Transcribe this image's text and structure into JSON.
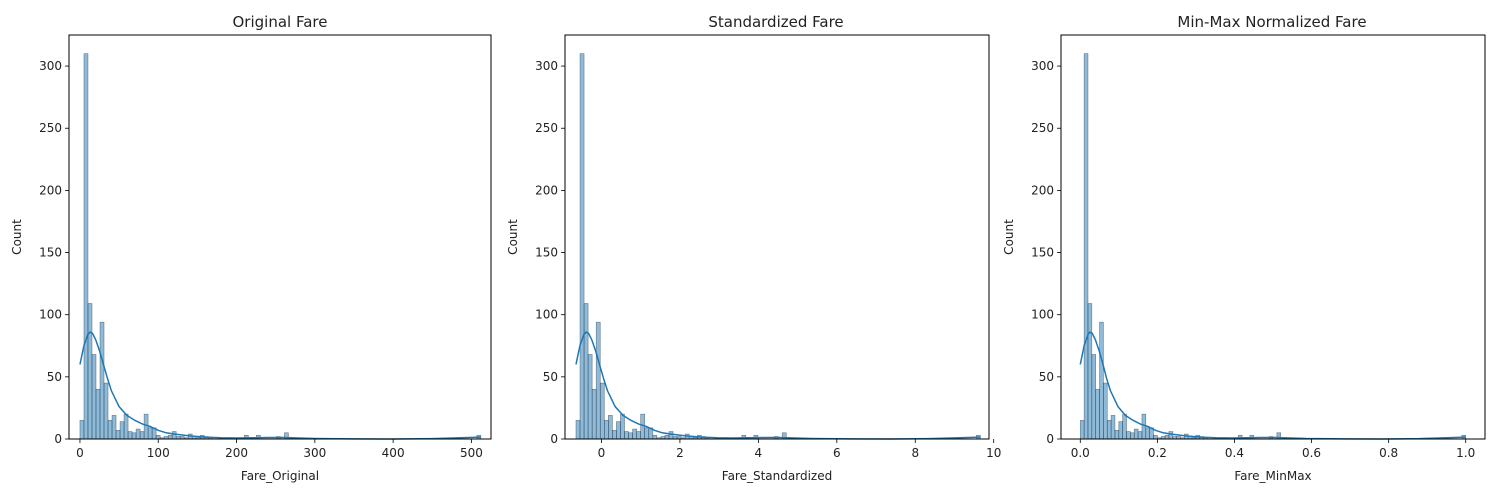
{
  "chart_data": [
    {
      "type": "bar",
      "title": "Original Fare",
      "xlabel": "Fare_Original",
      "ylabel": "Count",
      "xlim": [
        -14,
        525
      ],
      "ylim": [
        0,
        325
      ],
      "xticks": [
        0,
        100,
        200,
        300,
        400,
        500
      ],
      "xtick_labels": [
        "0",
        "100",
        "200",
        "300",
        "400",
        "500"
      ],
      "yticks": [
        0,
        50,
        100,
        150,
        200,
        250,
        300
      ],
      "ytick_labels": [
        "0",
        "50",
        "100",
        "150",
        "200",
        "250",
        "300"
      ],
      "bin_start": 0,
      "bin_width": 5.12,
      "counts": [
        15,
        310,
        109,
        68,
        40,
        94,
        45,
        15,
        19,
        7,
        14,
        20,
        6,
        5,
        8,
        6,
        20,
        9,
        9,
        3,
        1,
        2,
        3,
        6,
        2,
        2,
        1,
        4,
        1,
        1,
        3,
        2,
        1,
        0,
        0,
        0,
        0,
        0,
        0,
        0,
        0,
        3,
        0,
        0,
        3,
        0,
        0,
        0,
        0,
        2,
        0,
        5,
        0,
        0,
        0,
        0,
        0,
        0,
        0,
        0,
        0,
        0,
        0,
        0,
        0,
        0,
        0,
        0,
        0,
        0,
        0,
        0,
        0,
        0,
        0,
        0,
        0,
        0,
        0,
        0,
        0,
        0,
        0,
        0,
        0,
        0,
        0,
        0,
        0,
        0,
        0,
        0,
        0,
        0,
        0,
        0,
        0,
        0,
        0,
        3
      ],
      "kde": {
        "x": [
          0,
          5,
          10,
          13,
          16,
          20,
          25,
          30,
          35,
          40,
          50,
          60,
          70,
          80,
          90,
          100,
          110,
          120,
          140,
          160,
          180,
          200,
          220,
          240,
          260,
          280,
          300,
          350,
          400,
          450,
          512
        ],
        "y": [
          60,
          75,
          84,
          86,
          85,
          80,
          71,
          60,
          49,
          39,
          26,
          19,
          15,
          12,
          10,
          7,
          5,
          4,
          2.5,
          1.5,
          1,
          0.8,
          1,
          1.2,
          1.2,
          0.8,
          0.4,
          0.1,
          0,
          0.3,
          1.5
        ]
      },
      "bar_color": "#1f77b4",
      "line_color": "#1f77b4"
    },
    {
      "type": "bar",
      "title": "Standardized Fare",
      "xlabel": "Fare_Standardized",
      "ylabel": "Count",
      "xlim": [
        -0.93,
        9.88
      ],
      "ylim": [
        0,
        325
      ],
      "xticks": [
        0,
        2,
        4,
        6,
        8,
        10
      ],
      "xtick_labels": [
        "0",
        "2",
        "4",
        "6",
        "8",
        "10"
      ],
      "yticks": [
        0,
        50,
        100,
        150,
        200,
        250,
        300
      ],
      "ytick_labels": [
        "0",
        "50",
        "100",
        "150",
        "200",
        "250",
        "300"
      ],
      "bin_start": -0.65,
      "bin_width": 0.1031,
      "counts": [
        15,
        310,
        109,
        68,
        40,
        94,
        45,
        15,
        19,
        7,
        14,
        20,
        6,
        5,
        8,
        6,
        20,
        9,
        9,
        3,
        1,
        2,
        3,
        6,
        2,
        2,
        1,
        4,
        1,
        1,
        3,
        2,
        1,
        0,
        0,
        0,
        0,
        0,
        0,
        0,
        0,
        3,
        0,
        0,
        3,
        0,
        0,
        0,
        0,
        2,
        0,
        5,
        0,
        0,
        0,
        0,
        0,
        0,
        0,
        0,
        0,
        0,
        0,
        0,
        0,
        0,
        0,
        0,
        0,
        0,
        0,
        0,
        0,
        0,
        0,
        0,
        0,
        0,
        0,
        0,
        0,
        0,
        0,
        0,
        0,
        0,
        0,
        0,
        0,
        0,
        0,
        0,
        0,
        0,
        0,
        0,
        0,
        0,
        0,
        3
      ],
      "kde": {
        "x": [
          -0.65,
          -0.55,
          -0.45,
          -0.39,
          -0.33,
          -0.25,
          -0.15,
          -0.05,
          0.05,
          0.15,
          0.35,
          0.55,
          0.75,
          0.95,
          1.15,
          1.35,
          1.55,
          1.75,
          2.15,
          2.55,
          2.95,
          3.35,
          3.75,
          4.15,
          4.55,
          4.95,
          5.35,
          6.35,
          7.35,
          8.35,
          9.66
        ],
        "y": [
          60,
          75,
          84,
          86,
          85,
          80,
          71,
          60,
          49,
          39,
          26,
          19,
          15,
          12,
          10,
          7,
          5,
          4,
          2.5,
          1.5,
          1,
          0.8,
          1,
          1.2,
          1.2,
          0.8,
          0.4,
          0.1,
          0,
          0.3,
          1.5
        ]
      },
      "bar_color": "#1f77b4",
      "line_color": "#1f77b4"
    },
    {
      "type": "bar",
      "title": "Min-Max Normalized Fare",
      "xlabel": "Fare_MinMax",
      "ylabel": "Count",
      "xlim": [
        -0.05,
        1.05
      ],
      "ylim": [
        0,
        325
      ],
      "xticks": [
        0,
        0.2,
        0.4,
        0.6,
        0.8,
        1.0
      ],
      "xtick_labels": [
        "0.0",
        "0.2",
        "0.4",
        "0.6",
        "0.8",
        "1.0"
      ],
      "yticks": [
        0,
        50,
        100,
        150,
        200,
        250,
        300
      ],
      "ytick_labels": [
        "0",
        "50",
        "100",
        "150",
        "200",
        "250",
        "300"
      ],
      "bin_start": 0,
      "bin_width": 0.01,
      "counts": [
        15,
        310,
        109,
        68,
        40,
        94,
        45,
        15,
        19,
        7,
        14,
        20,
        6,
        5,
        8,
        6,
        20,
        9,
        9,
        3,
        1,
        2,
        3,
        6,
        2,
        2,
        1,
        4,
        1,
        1,
        3,
        2,
        1,
        0,
        0,
        0,
        0,
        0,
        0,
        0,
        0,
        3,
        0,
        0,
        3,
        0,
        0,
        0,
        0,
        2,
        0,
        5,
        0,
        0,
        0,
        0,
        0,
        0,
        0,
        0,
        0,
        0,
        0,
        0,
        0,
        0,
        0,
        0,
        0,
        0,
        0,
        0,
        0,
        0,
        0,
        0,
        0,
        0,
        0,
        0,
        0,
        0,
        0,
        0,
        0,
        0,
        0,
        0,
        0,
        0,
        0,
        0,
        0,
        0,
        0,
        0,
        0,
        0,
        0,
        3
      ],
      "kde": {
        "x": [
          0,
          0.01,
          0.02,
          0.025,
          0.031,
          0.039,
          0.049,
          0.059,
          0.068,
          0.078,
          0.098,
          0.117,
          0.137,
          0.156,
          0.176,
          0.195,
          0.215,
          0.234,
          0.273,
          0.312,
          0.352,
          0.391,
          0.43,
          0.469,
          0.508,
          0.547,
          0.586,
          0.684,
          0.781,
          0.879,
          1.0
        ],
        "y": [
          60,
          75,
          84,
          86,
          85,
          80,
          71,
          60,
          49,
          39,
          26,
          19,
          15,
          12,
          10,
          7,
          5,
          4,
          2.5,
          1.5,
          1,
          0.8,
          1,
          1.2,
          1.2,
          0.8,
          0.4,
          0.1,
          0,
          0.3,
          1.5
        ]
      },
      "bar_color": "#1f77b4",
      "line_color": "#1f77b4"
    }
  ]
}
